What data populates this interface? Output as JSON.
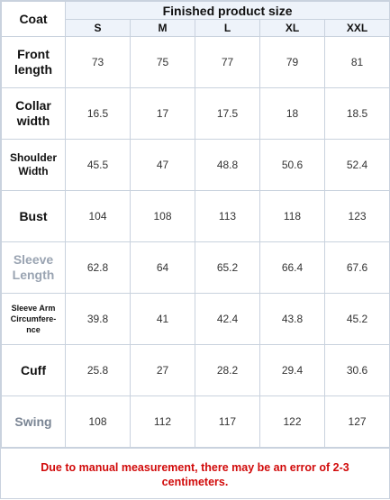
{
  "table": {
    "corner_label": "Coat",
    "group_header": "Finished product size",
    "sizes": [
      "S",
      "M",
      "L",
      "XL",
      "XXL"
    ],
    "rows": [
      {
        "label": [
          "Front",
          "length"
        ],
        "values": [
          "73",
          "75",
          "77",
          "79",
          "81"
        ]
      },
      {
        "label": [
          "Collar",
          "width"
        ],
        "values": [
          "16.5",
          "17",
          "17.5",
          "18",
          "18.5"
        ]
      },
      {
        "label": [
          "Shoulder",
          "Width"
        ],
        "values": [
          "45.5",
          "47",
          "48.8",
          "50.6",
          "52.4"
        ]
      },
      {
        "label": [
          "Bust"
        ],
        "values": [
          "104",
          "108",
          "113",
          "118",
          "123"
        ]
      },
      {
        "label": [
          "Sleeve",
          "Length"
        ],
        "values": [
          "62.8",
          "64",
          "65.2",
          "66.4",
          "67.6"
        ]
      },
      {
        "label": [
          "Sleeve Arm",
          "Circumfere-",
          "nce"
        ],
        "values": [
          "39.8",
          "41",
          "42.4",
          "43.8",
          "45.2"
        ]
      },
      {
        "label": [
          "Cuff"
        ],
        "values": [
          "25.8",
          "27",
          "28.2",
          "29.4",
          "30.6"
        ]
      },
      {
        "label": [
          "Swing"
        ],
        "values": [
          "108",
          "112",
          "117",
          "122",
          "127"
        ]
      }
    ]
  },
  "note": "Due to manual measurement, there may be an error of 2-3 centimeters.",
  "colors": {
    "note": "#d10a0a",
    "header_bg": "#eef3fa",
    "border": "#c9d2de"
  }
}
